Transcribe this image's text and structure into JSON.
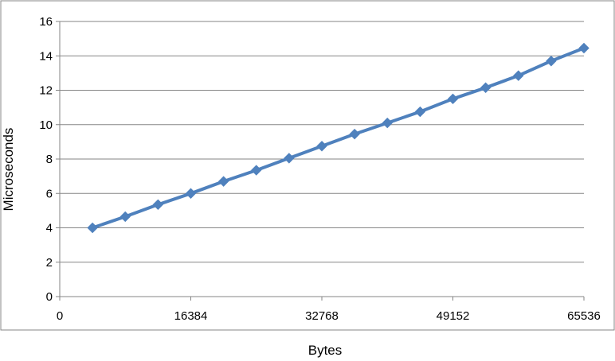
{
  "chart_data": {
    "type": "line",
    "title": "",
    "xlabel": "Bytes",
    "ylabel": "Microseconds",
    "xlim": [
      0,
      65536
    ],
    "ylim": [
      0,
      16
    ],
    "x_ticks": [
      0,
      16384,
      32768,
      49152,
      65536
    ],
    "x_tick_labels": [
      "0",
      "16384",
      "32768",
      "49152",
      "65536"
    ],
    "y_ticks": [
      0,
      2,
      4,
      6,
      8,
      10,
      12,
      14,
      16
    ],
    "y_tick_labels": [
      "0",
      "2",
      "4",
      "6",
      "8",
      "10",
      "12",
      "14",
      "16"
    ],
    "grid": "horizontal",
    "legend": "none",
    "colors": {
      "series": "#4f81bd",
      "grid": "#868686",
      "frame": "#868686"
    },
    "series": [
      {
        "x": [
          4096,
          8192,
          12288,
          16384,
          20480,
          24576,
          28672,
          32768,
          36864,
          40960,
          45056,
          49152,
          53248,
          57344,
          61440,
          65536
        ],
        "values": [
          4.0,
          4.65,
          5.35,
          6.0,
          6.7,
          7.35,
          8.05,
          8.75,
          9.45,
          10.1,
          10.75,
          11.5,
          12.15,
          12.85,
          13.7,
          14.45
        ]
      }
    ]
  }
}
